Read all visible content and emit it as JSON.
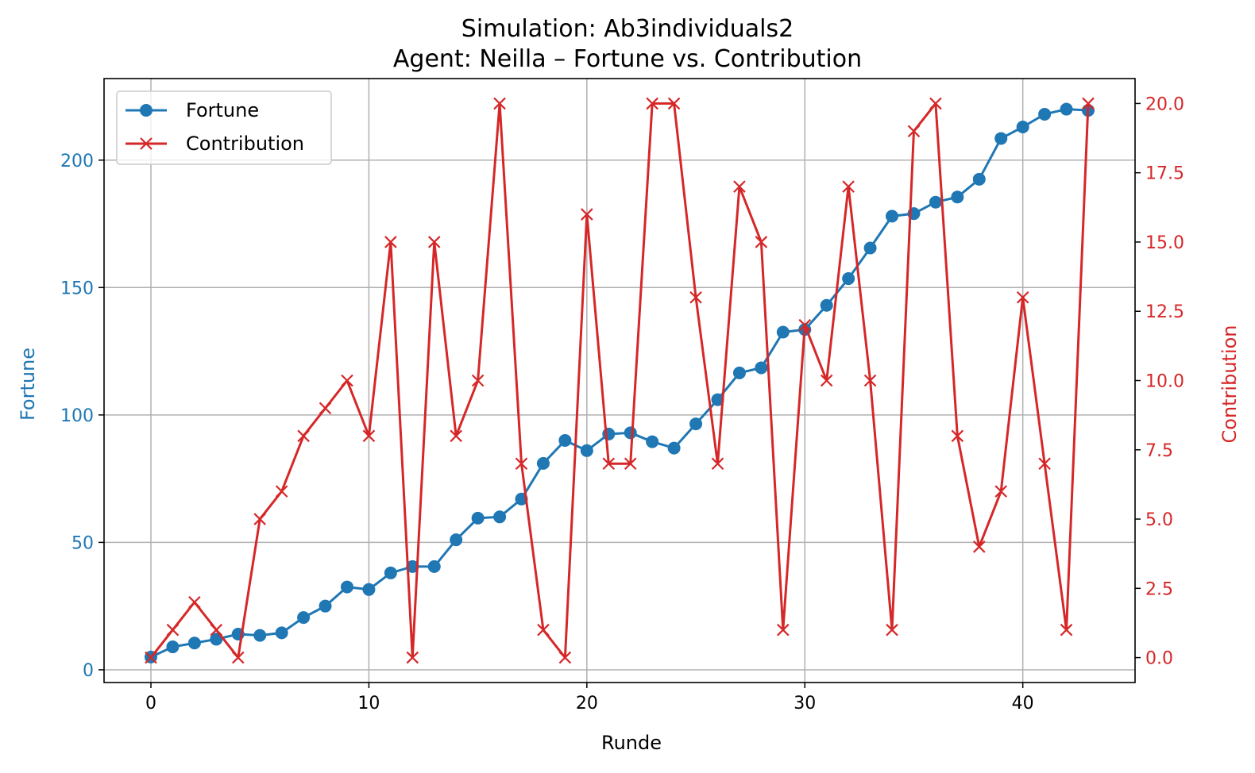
{
  "chart_data": {
    "type": "line",
    "title": "Simulation: Ab3individuals2",
    "subtitle": "Agent: Neilla – Fortune vs. Contribution",
    "xlabel": "Runde",
    "ylabel": "Fortune",
    "y2label": "Contribution",
    "xlim": [
      -2.15,
      45.15
    ],
    "ylim": [
      -5,
      232
    ],
    "y2lim": [
      -0.9,
      20.9
    ],
    "xticks": [
      0,
      10,
      20,
      30,
      40
    ],
    "yticks": [
      0,
      50,
      100,
      150,
      200
    ],
    "y2ticks": [
      "0.0",
      "2.5",
      "5.0",
      "7.5",
      "10.0",
      "12.5",
      "15.0",
      "17.5",
      "20.0"
    ],
    "grid": true,
    "legend_position": "top-left",
    "colors": {
      "fortune": "#1f77b4",
      "contribution": "#d62728"
    },
    "x": [
      0,
      1,
      2,
      3,
      4,
      5,
      6,
      7,
      8,
      9,
      10,
      11,
      12,
      13,
      14,
      15,
      16,
      17,
      18,
      19,
      20,
      21,
      22,
      23,
      24,
      25,
      26,
      27,
      28,
      29,
      30,
      31,
      32,
      33,
      34,
      35,
      36,
      37,
      38,
      39,
      40,
      41,
      42,
      43
    ],
    "series": [
      {
        "name": "Fortune",
        "axis": "left",
        "marker": "circle",
        "values": [
          5,
          9,
          10.5,
          12,
          14,
          13.5,
          14.5,
          20.5,
          25,
          32.5,
          31.5,
          38,
          40.5,
          40.5,
          51,
          59.5,
          60,
          67,
          81,
          90,
          86,
          92.5,
          93,
          89.5,
          87,
          96.5,
          106,
          116.5,
          118.5,
          132.5,
          133.5,
          143,
          153.5,
          165.5,
          178,
          179,
          183.5,
          185.5,
          192.5,
          208.5,
          213,
          218,
          220,
          219.5
        ]
      },
      {
        "name": "Contribution",
        "axis": "right",
        "marker": "x",
        "values": [
          0,
          1,
          2,
          1,
          0,
          5,
          6,
          8,
          9,
          10,
          8,
          15,
          0,
          15,
          8,
          10,
          20,
          7,
          1,
          0,
          16,
          7,
          7,
          20,
          20,
          13,
          7,
          17,
          15,
          1,
          12,
          10,
          17,
          10,
          1,
          19,
          20,
          8,
          4,
          6,
          13,
          7,
          1,
          20
        ]
      }
    ]
  }
}
